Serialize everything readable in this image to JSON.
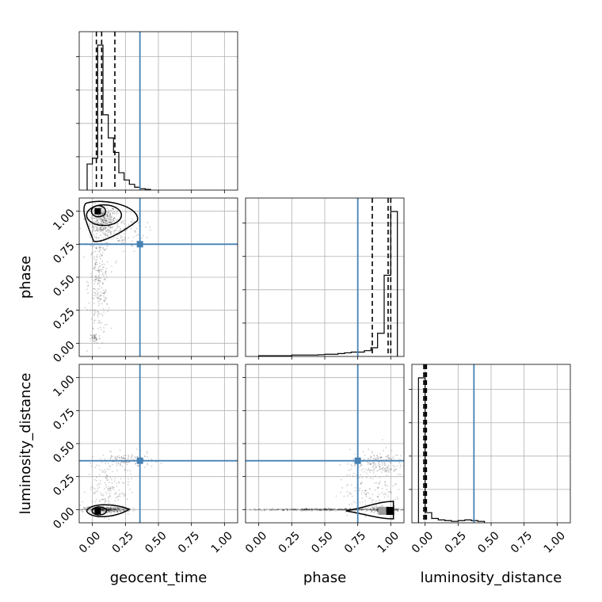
{
  "chart_data": {
    "type": "corner",
    "parameters": [
      "geocent_time",
      "phase",
      "luminosity_distance"
    ],
    "axis_labels": {
      "geocent_time": "geocent_time",
      "phase": "phase",
      "luminosity_distance": "luminosity_distance"
    },
    "ticks": [
      0.0,
      0.25,
      0.5,
      0.75,
      1.0
    ],
    "tick_labels": [
      "0.00",
      "0.25",
      "0.50",
      "0.75",
      "1.00"
    ],
    "range": [
      -0.1,
      1.1
    ],
    "grid": true,
    "truth": {
      "geocent_time": 0.36,
      "phase": 0.75,
      "luminosity_distance": 0.37,
      "color": "#4682b4"
    },
    "histograms": {
      "geocent_time": {
        "bins": [
          -0.04,
          0.0,
          0.04,
          0.08,
          0.12,
          0.16,
          0.2,
          0.24,
          0.28,
          0.32,
          0.36,
          0.4,
          0.44
        ],
        "counts": [
          0.18,
          0.22,
          1.0,
          0.52,
          0.36,
          0.26,
          0.12,
          0.07,
          0.04,
          0.02,
          0.01,
          0.005
        ],
        "quantiles": [
          0.03,
          0.07,
          0.17
        ]
      },
      "phase": {
        "bins": [
          0.0,
          0.05,
          0.1,
          0.15,
          0.2,
          0.25,
          0.3,
          0.35,
          0.4,
          0.45,
          0.5,
          0.55,
          0.6,
          0.65,
          0.7,
          0.75,
          0.8,
          0.85,
          0.9,
          0.95,
          1.0,
          1.05
        ],
        "counts": [
          0.005,
          0.005,
          0.005,
          0.005,
          0.005,
          0.01,
          0.01,
          0.01,
          0.01,
          0.012,
          0.015,
          0.015,
          0.02,
          0.025,
          0.03,
          0.03,
          0.04,
          0.06,
          0.16,
          0.56,
          1.0
        ],
        "quantiles": [
          0.86,
          0.98,
          1.0
        ]
      },
      "luminosity_distance": {
        "bins": [
          -0.05,
          0.0,
          0.05,
          0.1,
          0.15,
          0.2,
          0.25,
          0.3,
          0.35,
          0.4,
          0.45
        ],
        "counts": [
          1.0,
          0.07,
          0.03,
          0.02,
          0.015,
          0.01,
          0.015,
          0.02,
          0.015,
          0.01
        ],
        "quantiles": [
          -0.01,
          0.0,
          0.01
        ]
      }
    },
    "pairs": [
      {
        "x": "geocent_time",
        "y": "phase",
        "density_peak": [
          0.04,
          1.0
        ],
        "clusters": [
          {
            "cx": 0.08,
            "cy": 0.93,
            "sx": 0.05,
            "sy": 0.06,
            "n": 350
          },
          {
            "cx": 0.05,
            "cy": 0.45,
            "sx": 0.04,
            "sy": 0.2,
            "n": 250
          },
          {
            "cx": 0.02,
            "cy": 0.04,
            "sx": 0.02,
            "sy": 0.02,
            "n": 40
          },
          {
            "cx": 0.2,
            "cy": 0.85,
            "sx": 0.1,
            "sy": 0.08,
            "n": 140
          }
        ]
      },
      {
        "x": "geocent_time",
        "y": "luminosity_distance",
        "density_peak": [
          0.04,
          -0.01
        ],
        "clusters": [
          {
            "cx": 0.1,
            "cy": 0.0,
            "sx": 0.08,
            "sy": 0.01,
            "n": 400
          },
          {
            "cx": 0.25,
            "cy": 0.37,
            "sx": 0.1,
            "sy": 0.03,
            "n": 130
          },
          {
            "cx": 0.12,
            "cy": 0.15,
            "sx": 0.08,
            "sy": 0.1,
            "n": 160
          }
        ]
      },
      {
        "x": "phase",
        "y": "luminosity_distance",
        "density_peak": [
          0.99,
          -0.01
        ],
        "clusters": [
          {
            "cx": 0.5,
            "cy": 0.0,
            "sx": 0.28,
            "sy": 0.004,
            "n": 450
          },
          {
            "cx": 0.95,
            "cy": 0.0,
            "sx": 0.05,
            "sy": 0.01,
            "n": 250
          },
          {
            "cx": 0.9,
            "cy": 0.35,
            "sx": 0.1,
            "sy": 0.05,
            "n": 180
          },
          {
            "cx": 0.85,
            "cy": 0.15,
            "sx": 0.12,
            "sy": 0.1,
            "n": 150
          }
        ]
      }
    ]
  }
}
